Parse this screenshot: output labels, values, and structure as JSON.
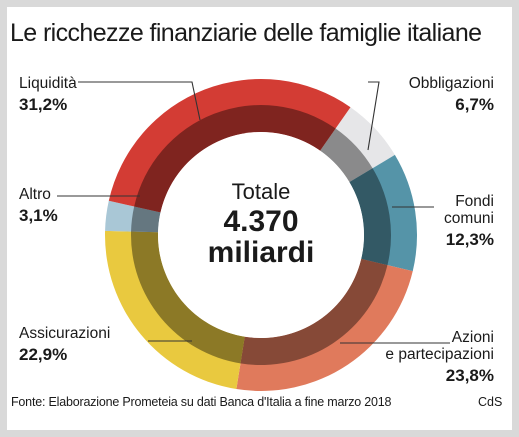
{
  "chart_data": {
    "type": "donut",
    "title": "Le ricchezze finanziarie delle famiglie italiane",
    "center": {
      "line1": "Totale",
      "line2": "4.370",
      "line3": "miliardi"
    },
    "unit": "%",
    "slices": [
      {
        "name": "Obbligazioni",
        "value": 6.7,
        "label": "6,7%",
        "color": "#e6e6e8"
      },
      {
        "name": "Fondi comuni",
        "value": 12.3,
        "label": "12,3%",
        "color": "#5594a8"
      },
      {
        "name": "Azioni e partecipazioni",
        "value": 23.8,
        "label": "23,8%",
        "color": "#e07a5c"
      },
      {
        "name": "Assicurazioni",
        "value": 22.9,
        "label": "22,9%",
        "color": "#e9c93f"
      },
      {
        "name": "Altro",
        "value": 3.1,
        "label": "3,1%",
        "color": "#a9c7d6"
      },
      {
        "name": "Liquidità",
        "value": 31.2,
        "label": "31,2%",
        "color": "#d33c34"
      }
    ]
  },
  "labels": {
    "obbligazioni": {
      "name": "Obbligazioni",
      "value": "6,7%"
    },
    "fondi": {
      "name_line1": "Fondi",
      "name_line2": "comuni",
      "value": "12,3%"
    },
    "azioni": {
      "name_line1": "Azioni",
      "name_line2": "e partecipazioni",
      "value": "23,8%"
    },
    "assicurazioni": {
      "name": "Assicurazioni",
      "value": "22,9%"
    },
    "altro": {
      "name": "Altro",
      "value": "3,1%"
    },
    "liquidita": {
      "name": "Liquidità",
      "value": "31,2%"
    }
  },
  "footer": {
    "source": "Fonte: Elaborazione Prometeia su dati Banca d'Italia a fine marzo 2018",
    "credit": "CdS"
  }
}
